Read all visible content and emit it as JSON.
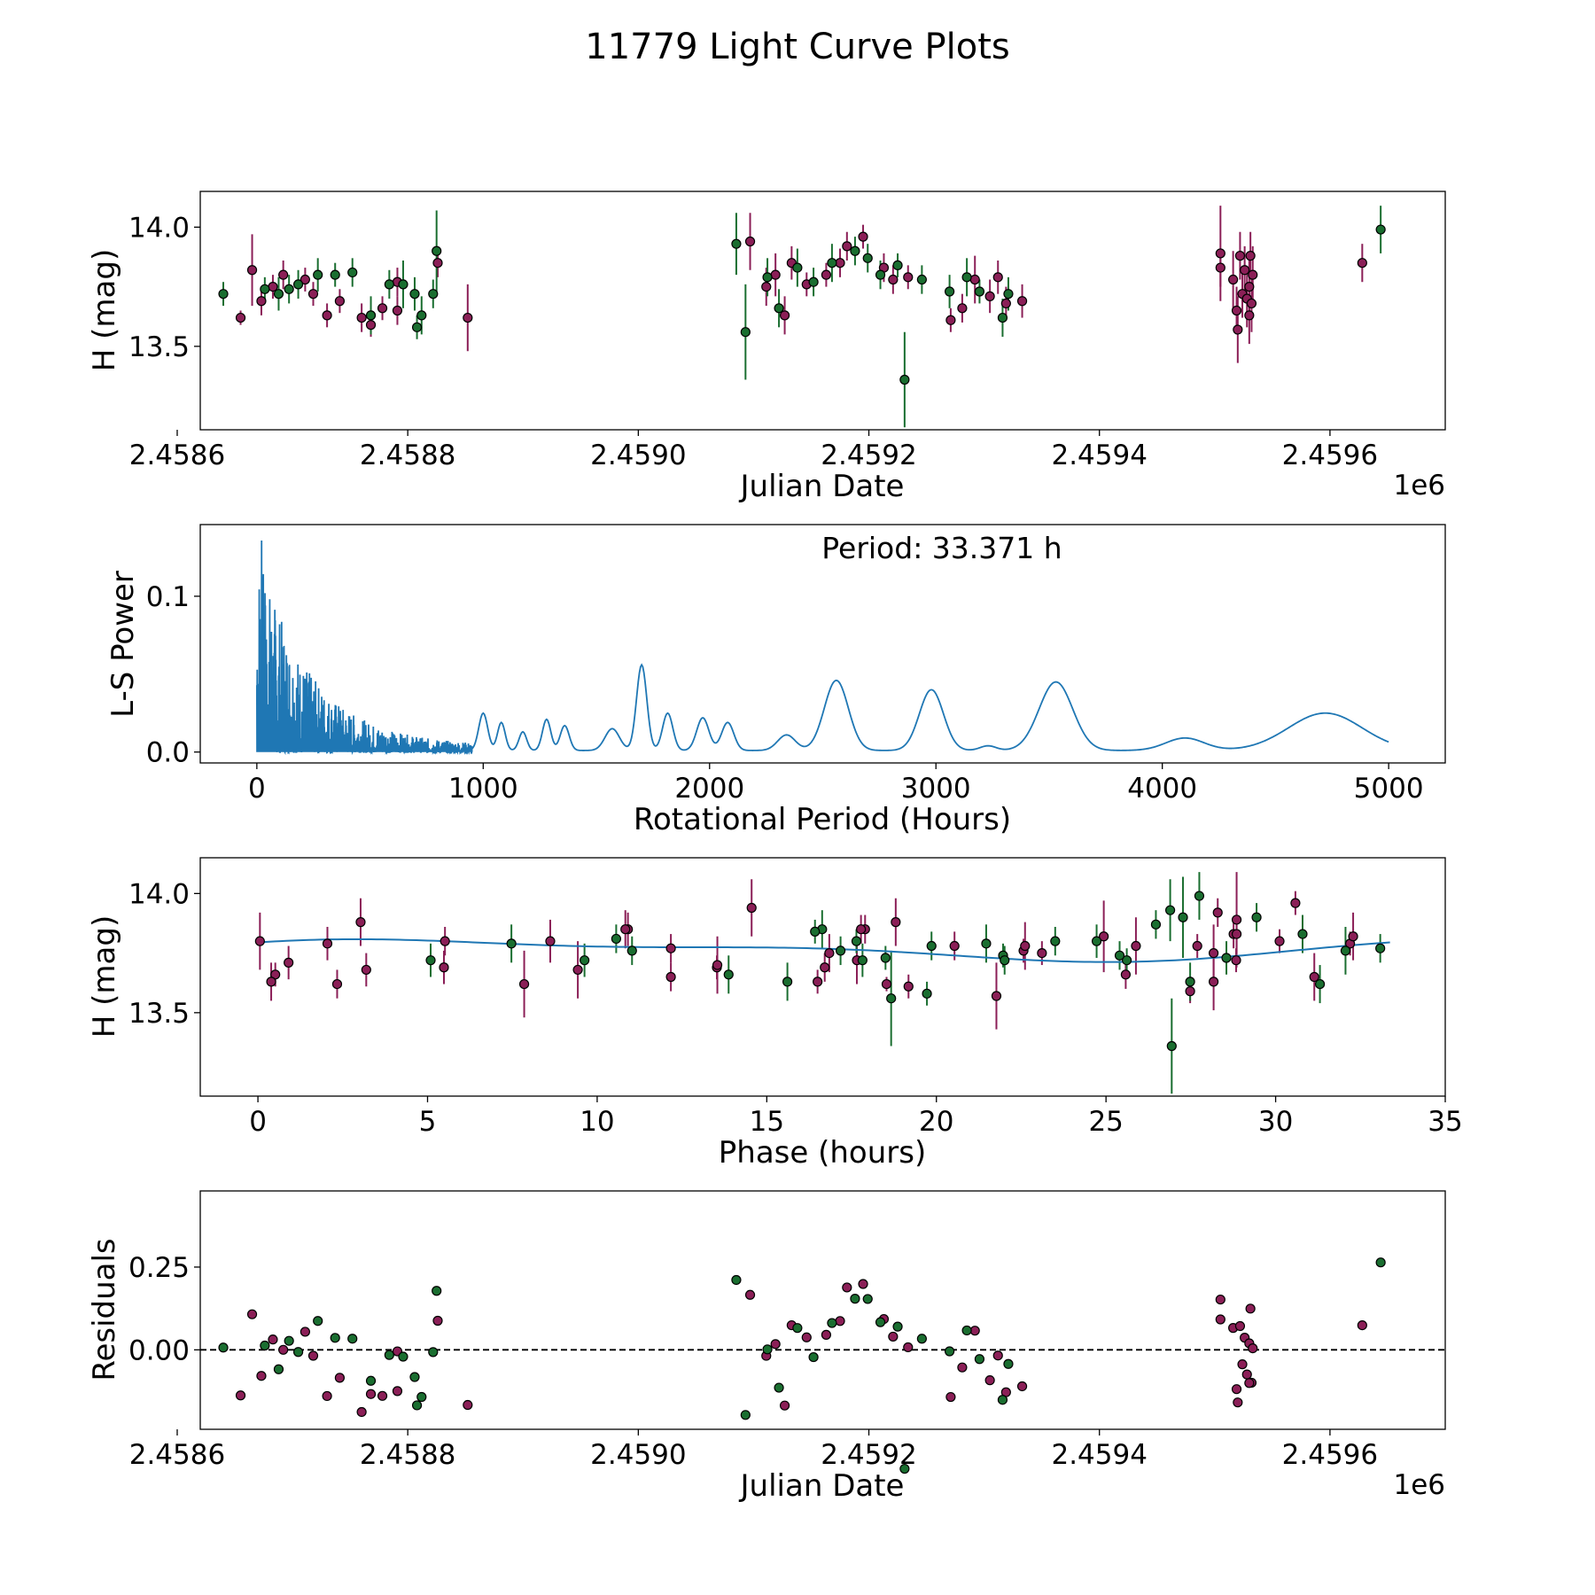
{
  "title": "11779 Light Curve Plots",
  "colors": {
    "filter_a": "#8b1f57",
    "filter_b": "#1a6e30",
    "periodogram": "#1f77b4",
    "fit": "#1f77b4",
    "axes": "#000000"
  },
  "chart_data": [
    {
      "id": "lightcurve",
      "type": "scatter",
      "xlabel": "Julian Date",
      "ylabel": "H (mag)",
      "x_offset_label": "1e6",
      "xlim": [
        2.45862,
        2.4597
      ],
      "ylim": [
        13.15,
        14.15
      ],
      "xticks": [
        2.4586,
        2.4588,
        2.459,
        2.4592,
        2.4594,
        2.4596
      ],
      "xtick_labels": [
        "2.4586",
        "2.4588",
        "2.4590",
        "2.4592",
        "2.4594",
        "2.4596"
      ],
      "yticks": [
        13.5,
        14.0
      ],
      "ytick_labels": [
        "13.5",
        "14.0"
      ],
      "note": "x values in units of 1e6 days",
      "series": [
        {
          "name": "filter_a",
          "color": "#8b1f57",
          "points": [
            {
              "x": 2.458655,
              "y": 13.62,
              "err": 0.03
            },
            {
              "x": 2.458665,
              "y": 13.82,
              "err": 0.15
            },
            {
              "x": 2.458673,
              "y": 13.69,
              "err": 0.06
            },
            {
              "x": 2.458683,
              "y": 13.75,
              "err": 0.05
            },
            {
              "x": 2.458692,
              "y": 13.8,
              "err": 0.06
            },
            {
              "x": 2.458711,
              "y": 13.78,
              "err": 0.05
            },
            {
              "x": 2.458718,
              "y": 13.72,
              "err": 0.05
            },
            {
              "x": 2.45873,
              "y": 13.63,
              "err": 0.05
            },
            {
              "x": 2.458741,
              "y": 13.69,
              "err": 0.05
            },
            {
              "x": 2.45876,
              "y": 13.62,
              "err": 0.06
            },
            {
              "x": 2.458768,
              "y": 13.59,
              "err": 0.05
            },
            {
              "x": 2.458778,
              "y": 13.66,
              "err": 0.05
            },
            {
              "x": 2.458791,
              "y": 13.65,
              "err": 0.06
            },
            {
              "x": 2.458791,
              "y": 13.77,
              "err": 0.06
            },
            {
              "x": 2.458826,
              "y": 13.85,
              "err": 0.06
            },
            {
              "x": 2.458852,
              "y": 13.62,
              "err": 0.14
            },
            {
              "x": 2.459097,
              "y": 13.94,
              "err": 0.12
            },
            {
              "x": 2.459111,
              "y": 13.75,
              "err": 0.08
            },
            {
              "x": 2.459119,
              "y": 13.8,
              "err": 0.09
            },
            {
              "x": 2.459127,
              "y": 13.63,
              "err": 0.08
            },
            {
              "x": 2.459133,
              "y": 13.85,
              "err": 0.07
            },
            {
              "x": 2.459146,
              "y": 13.76,
              "err": 0.05
            },
            {
              "x": 2.459163,
              "y": 13.8,
              "err": 0.05
            },
            {
              "x": 2.459175,
              "y": 13.85,
              "err": 0.06
            },
            {
              "x": 2.459181,
              "y": 13.92,
              "err": 0.06
            },
            {
              "x": 2.459195,
              "y": 13.96,
              "err": 0.05
            },
            {
              "x": 2.459213,
              "y": 13.83,
              "err": 0.06
            },
            {
              "x": 2.459221,
              "y": 13.78,
              "err": 0.06
            },
            {
              "x": 2.459234,
              "y": 13.79,
              "err": 0.05
            },
            {
              "x": 2.459271,
              "y": 13.61,
              "err": 0.05
            },
            {
              "x": 2.459281,
              "y": 13.66,
              "err": 0.06
            },
            {
              "x": 2.459292,
              "y": 13.78,
              "err": 0.1
            },
            {
              "x": 2.459305,
              "y": 13.71,
              "err": 0.07
            },
            {
              "x": 2.459312,
              "y": 13.79,
              "err": 0.07
            },
            {
              "x": 2.459319,
              "y": 13.68,
              "err": 0.07
            },
            {
              "x": 2.459333,
              "y": 13.69,
              "err": 0.07
            },
            {
              "x": 2.459505,
              "y": 13.89,
              "err": 0.2
            },
            {
              "x": 2.459505,
              "y": 13.83,
              "err": 0.08
            },
            {
              "x": 2.459516,
              "y": 13.78,
              "err": 0.12
            },
            {
              "x": 2.459519,
              "y": 13.65,
              "err": 0.1
            },
            {
              "x": 2.45952,
              "y": 13.57,
              "err": 0.14
            },
            {
              "x": 2.459522,
              "y": 13.88,
              "err": 0.1
            },
            {
              "x": 2.459524,
              "y": 13.72,
              "err": 0.1
            },
            {
              "x": 2.459526,
              "y": 13.82,
              "err": 0.1
            },
            {
              "x": 2.459528,
              "y": 13.7,
              "err": 0.12
            },
            {
              "x": 2.45953,
              "y": 13.75,
              "err": 0.12
            },
            {
              "x": 2.459532,
              "y": 13.68,
              "err": 0.12
            },
            {
              "x": 2.459533,
              "y": 13.8,
              "err": 0.12
            },
            {
              "x": 2.459531,
              "y": 13.88,
              "err": 0.1
            },
            {
              "x": 2.45953,
              "y": 13.63,
              "err": 0.12
            },
            {
              "x": 2.459628,
              "y": 13.85,
              "err": 0.08
            }
          ]
        },
        {
          "name": "filter_b",
          "color": "#1a6e30",
          "points": [
            {
              "x": 2.45864,
              "y": 13.72,
              "err": 0.05
            },
            {
              "x": 2.458676,
              "y": 13.74,
              "err": 0.05
            },
            {
              "x": 2.458688,
              "y": 13.72,
              "err": 0.07
            },
            {
              "x": 2.458697,
              "y": 13.74,
              "err": 0.06
            },
            {
              "x": 2.458705,
              "y": 13.76,
              "err": 0.06
            },
            {
              "x": 2.458722,
              "y": 13.8,
              "err": 0.07
            },
            {
              "x": 2.458737,
              "y": 13.8,
              "err": 0.05
            },
            {
              "x": 2.458752,
              "y": 13.81,
              "err": 0.06
            },
            {
              "x": 2.458768,
              "y": 13.63,
              "err": 0.08
            },
            {
              "x": 2.458784,
              "y": 13.76,
              "err": 0.06
            },
            {
              "x": 2.458796,
              "y": 13.76,
              "err": 0.1
            },
            {
              "x": 2.458806,
              "y": 13.72,
              "err": 0.07
            },
            {
              "x": 2.458808,
              "y": 13.58,
              "err": 0.05
            },
            {
              "x": 2.458812,
              "y": 13.63,
              "err": 0.08
            },
            {
              "x": 2.458822,
              "y": 13.72,
              "err": 0.06
            },
            {
              "x": 2.458825,
              "y": 13.9,
              "err": 0.17
            },
            {
              "x": 2.459093,
              "y": 13.56,
              "err": 0.2
            },
            {
              "x": 2.459085,
              "y": 13.93,
              "err": 0.13
            },
            {
              "x": 2.459112,
              "y": 13.79,
              "err": 0.08
            },
            {
              "x": 2.459122,
              "y": 13.66,
              "err": 0.08
            },
            {
              "x": 2.459138,
              "y": 13.83,
              "err": 0.08
            },
            {
              "x": 2.459152,
              "y": 13.77,
              "err": 0.06
            },
            {
              "x": 2.459168,
              "y": 13.85,
              "err": 0.08
            },
            {
              "x": 2.459188,
              "y": 13.9,
              "err": 0.06
            },
            {
              "x": 2.459199,
              "y": 13.87,
              "err": 0.06
            },
            {
              "x": 2.45921,
              "y": 13.8,
              "err": 0.06
            },
            {
              "x": 2.459231,
              "y": 13.36,
              "err": 0.2
            },
            {
              "x": 2.459225,
              "y": 13.84,
              "err": 0.05
            },
            {
              "x": 2.459246,
              "y": 13.78,
              "err": 0.06
            },
            {
              "x": 2.45927,
              "y": 13.73,
              "err": 0.07
            },
            {
              "x": 2.459285,
              "y": 13.79,
              "err": 0.08
            },
            {
              "x": 2.459296,
              "y": 13.73,
              "err": 0.05
            },
            {
              "x": 2.459316,
              "y": 13.62,
              "err": 0.08
            },
            {
              "x": 2.459321,
              "y": 13.72,
              "err": 0.07
            },
            {
              "x": 2.459644,
              "y": 13.99,
              "err": 0.1
            }
          ]
        }
      ]
    },
    {
      "id": "periodogram",
      "type": "line",
      "xlabel": "Rotational Period (Hours)",
      "ylabel": "L-S Power",
      "annotation": "Period: 33.371 h",
      "xlim": [
        -250,
        5250
      ],
      "ylim": [
        -0.007,
        0.146
      ],
      "xticks": [
        0,
        1000,
        2000,
        3000,
        4000,
        5000
      ],
      "xtick_labels": [
        "0",
        "1000",
        "2000",
        "3000",
        "4000",
        "5000"
      ],
      "yticks": [
        0.0,
        0.1
      ],
      "ytick_labels": [
        "0.0",
        "0.1"
      ],
      "broad_peaks": [
        {
          "period": 1000,
          "power": 0.024,
          "width": 28
        },
        {
          "period": 1080,
          "power": 0.018,
          "width": 24
        },
        {
          "period": 1175,
          "power": 0.012,
          "width": 24
        },
        {
          "period": 1280,
          "power": 0.02,
          "width": 26
        },
        {
          "period": 1360,
          "power": 0.016,
          "width": 28
        },
        {
          "period": 1570,
          "power": 0.014,
          "width": 45
        },
        {
          "period": 1700,
          "power": 0.055,
          "width": 32
        },
        {
          "period": 1815,
          "power": 0.024,
          "width": 32
        },
        {
          "period": 1970,
          "power": 0.021,
          "width": 38
        },
        {
          "period": 2080,
          "power": 0.018,
          "width": 38
        },
        {
          "period": 2340,
          "power": 0.01,
          "width": 55
        },
        {
          "period": 2560,
          "power": 0.045,
          "width": 75
        },
        {
          "period": 2980,
          "power": 0.039,
          "width": 75
        },
        {
          "period": 3230,
          "power": 0.003,
          "width": 50
        },
        {
          "period": 3530,
          "power": 0.044,
          "width": 105
        },
        {
          "period": 4100,
          "power": 0.008,
          "width": 120
        },
        {
          "period": 4720,
          "power": 0.024,
          "width": 230
        }
      ],
      "dense_region_max_period": 950,
      "max_power": 0.137
    },
    {
      "id": "phased",
      "type": "scatter",
      "xlabel": "Phase (hours)",
      "ylabel": "H (mag)",
      "xlim": [
        -1.7,
        35.0
      ],
      "ylim": [
        13.15,
        14.15
      ],
      "xticks": [
        0,
        5,
        10,
        15,
        20,
        25,
        30,
        35
      ],
      "xtick_labels": [
        "0",
        "5",
        "10",
        "15",
        "20",
        "25",
        "30",
        "35"
      ],
      "yticks": [
        13.5,
        14.0
      ],
      "ytick_labels": [
        "13.5",
        "14.0"
      ],
      "period_hours": 33.371,
      "fit": {
        "mean": 13.765,
        "amp1": 0.038,
        "phase1": 0.35,
        "amp2": 0.018,
        "phase2": 1.2
      }
    },
    {
      "id": "residuals",
      "type": "scatter",
      "xlabel": "Julian Date",
      "ylabel": "Residuals",
      "x_offset_label": "1e6",
      "xlim": [
        2.45862,
        2.4597
      ],
      "ylim": [
        -0.24,
        0.48
      ],
      "xticks": [
        2.4586,
        2.4588,
        2.459,
        2.4592,
        2.4594,
        2.4596
      ],
      "xtick_labels": [
        "2.4586",
        "2.4588",
        "2.4590",
        "2.4592",
        "2.4594",
        "2.4596"
      ],
      "yticks": [
        0.0,
        0.25
      ],
      "ytick_labels": [
        "0.00",
        "0.25"
      ],
      "zero_line": true
    }
  ]
}
